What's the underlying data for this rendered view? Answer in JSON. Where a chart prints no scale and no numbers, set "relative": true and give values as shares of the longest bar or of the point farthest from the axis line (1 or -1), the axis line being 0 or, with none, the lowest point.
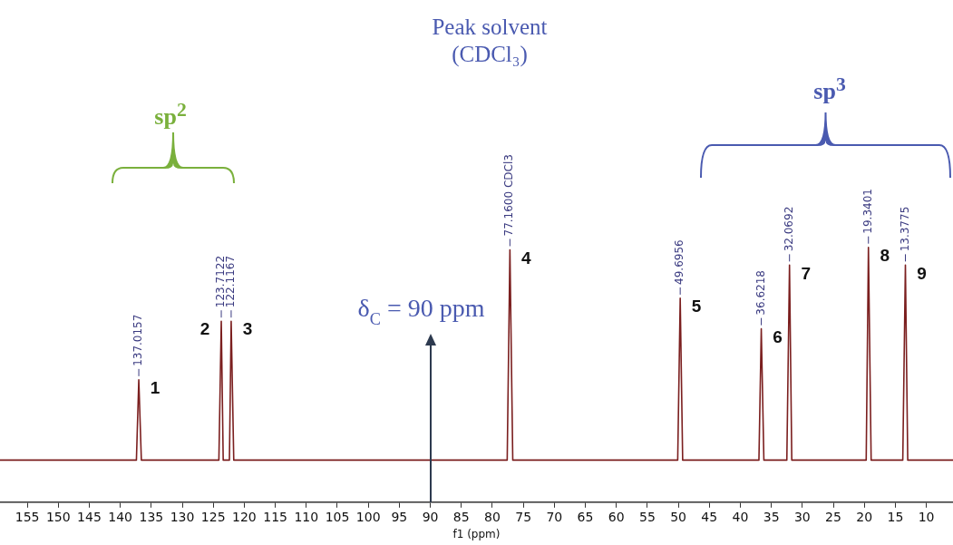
{
  "chart_data": {
    "type": "line",
    "relative": true,
    "xlabel": "f1 (ppm)",
    "xlim": [
      159.4,
      5.7
    ],
    "xticks": [
      155,
      150,
      145,
      140,
      135,
      130,
      125,
      120,
      115,
      110,
      105,
      100,
      95,
      90,
      85,
      80,
      75,
      70,
      65,
      60,
      55,
      50,
      45,
      40,
      35,
      30,
      25,
      20,
      15,
      10
    ],
    "tick_labels": "x",
    "grid": false,
    "legend": false,
    "series": [
      {
        "color": "#7b1f1f",
        "x": [
          159.4,
          137.4,
          137.0157,
          136.6,
          124.1,
          123.7122,
          123.4,
          122.4,
          122.1167,
          121.7,
          77.6,
          77.16,
          76.7,
          50.1,
          49.6956,
          49.3,
          37.0,
          36.6218,
          36.2,
          32.5,
          32.0692,
          31.7,
          19.7,
          19.3401,
          18.9,
          13.8,
          13.3775,
          13.0,
          5.7
        ],
        "values": [
          0.165,
          0.165,
          0.48,
          0.165,
          0.165,
          0.71,
          0.165,
          0.165,
          0.71,
          0.165,
          0.165,
          0.99,
          0.165,
          0.165,
          0.8,
          0.165,
          0.165,
          0.68,
          0.165,
          0.165,
          0.93,
          0.165,
          0.165,
          1,
          0.165,
          0.165,
          0.93,
          0.165,
          0.165
        ]
      }
    ],
    "ref_lines": [
      {
        "axis": "x",
        "value": 90,
        "label": "δ$_{C}$ = 90 ppm",
        "color": "#2d3a4f"
      }
    ],
    "annotations": [
      "Peak solvent (CDCl₃)",
      "sp$^{2}$",
      "sp$^{3}$",
      {
        "text": "137.0157",
        "x": 137.0157,
        "y": 0.48
      },
      {
        "text": "123.7122",
        "x": 123.7122,
        "y": 0.71
      },
      {
        "text": "122.1167",
        "x": 122.1167,
        "y": 0.71
      },
      {
        "text": "77.1600 CDCl3",
        "x": 77.16,
        "y": 0.99
      },
      {
        "text": "49.6956",
        "x": 49.6956,
        "y": 0.8
      },
      {
        "text": "36.6218",
        "x": 36.6218,
        "y": 0.68
      },
      {
        "text": "32.0692",
        "x": 32.0692,
        "y": 0.93
      },
      {
        "text": "19.3401",
        "x": 19.3401,
        "y": 1
      },
      {
        "text": "13.3775",
        "x": 13.3775,
        "y": 0.93
      },
      {
        "text": "1",
        "x": 137.0157,
        "y": 0.48
      },
      {
        "text": "2",
        "x": 123.7122,
        "y": 0.71
      },
      {
        "text": "3",
        "x": 122.1167,
        "y": 0.71
      },
      {
        "text": "4",
        "x": 77.16,
        "y": 0.99
      },
      {
        "text": "5",
        "x": 49.6956,
        "y": 0.8
      },
      {
        "text": "6",
        "x": 36.6218,
        "y": 0.68
      },
      {
        "text": "7",
        "x": 32.0692,
        "y": 0.93
      },
      {
        "text": "8",
        "x": 19.3401,
        "y": 1
      },
      {
        "text": "9",
        "x": 13.3775,
        "y": 0.93
      }
    ]
  }
}
